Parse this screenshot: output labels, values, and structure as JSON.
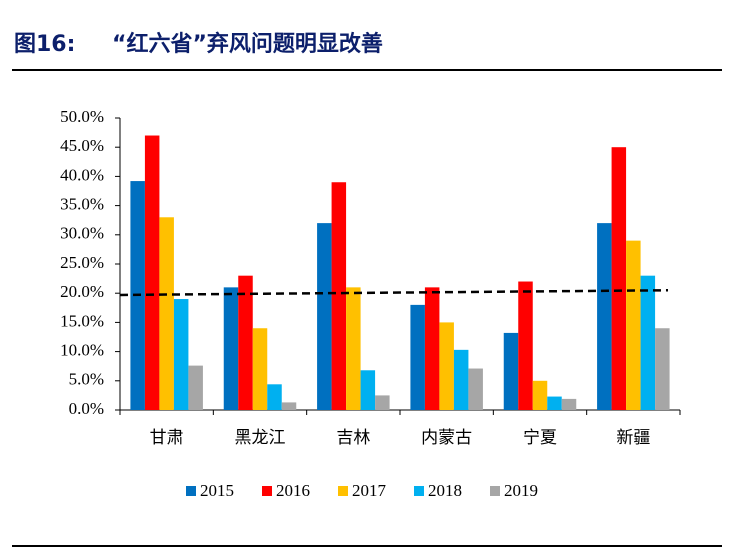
{
  "chart_data": {
    "type": "bar",
    "figure_label": "图16:",
    "title": "“红六省”弃风问题明显改善",
    "categories": [
      "甘肃",
      "黑龙江",
      "吉林",
      "内蒙古",
      "宁夏",
      "新疆"
    ],
    "series": [
      {
        "name": "2015",
        "color": "#0070c0",
        "values": [
          39.2,
          21,
          32,
          18,
          13.2,
          32
        ]
      },
      {
        "name": "2016",
        "color": "#ff0000",
        "values": [
          47,
          23,
          39,
          21,
          22,
          45
        ]
      },
      {
        "name": "2017",
        "color": "#ffc000",
        "values": [
          33,
          14,
          21,
          15,
          5,
          29
        ]
      },
      {
        "name": "2018",
        "color": "#00b0f0",
        "values": [
          19,
          4.4,
          6.8,
          10.3,
          2.3,
          23
        ]
      },
      {
        "name": "2019",
        "color": "#a6a6a6",
        "values": [
          7.6,
          1.3,
          2.5,
          7.1,
          1.9,
          14
        ]
      }
    ],
    "reference_line": {
      "values": [
        19.7,
        20.5
      ],
      "color": "#000000",
      "dashed": true
    },
    "ylim": [
      0,
      50
    ],
    "yticks": [
      {
        "value": 0,
        "label": "0.0%"
      },
      {
        "value": 5,
        "label": "5.0%"
      },
      {
        "value": 10,
        "label": "10.0%"
      },
      {
        "value": 15,
        "label": "15.0%"
      },
      {
        "value": 20,
        "label": "20.0%"
      },
      {
        "value": 25,
        "label": "25.0%"
      },
      {
        "value": 30,
        "label": "30.0%"
      },
      {
        "value": 35,
        "label": "35.0%"
      },
      {
        "value": 40,
        "label": "40.0%"
      },
      {
        "value": 45,
        "label": "45.0%"
      },
      {
        "value": 50,
        "label": "50.0%"
      }
    ],
    "grid": false,
    "legend": "bottom"
  }
}
